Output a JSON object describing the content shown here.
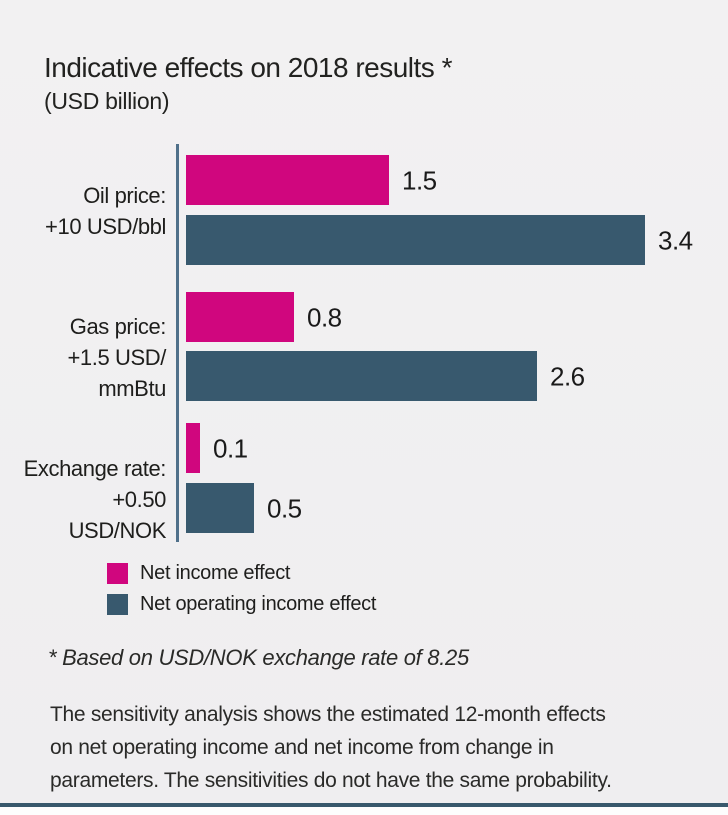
{
  "title": "Indicative effects on 2018 results *",
  "subtitle": "(USD billion)",
  "footnote": "* Based on USD/NOK exchange rate of 8.25",
  "description_lines": [
    "The sensitivity analysis shows the estimated 12-month effects",
    "on net operating income and net income from change in",
    "parameters. The sensitivities do not have the same probability."
  ],
  "colors": {
    "net_income_effect": "#d0067e",
    "net_operating_income_effect": "#38596e",
    "axis_line": "#50708a",
    "background": "#f0eff0",
    "bottom_rule": "#38586c",
    "text": "#1e1e1c"
  },
  "chart_data": {
    "type": "bar",
    "orientation": "horizontal",
    "title": "Indicative effects on 2018 results *",
    "unit_label": "(USD billion)",
    "xlim": [
      0,
      3.55
    ],
    "grid": false,
    "legend_position": "bottom-left",
    "categories": [
      {
        "label_lines": [
          "Oil price:",
          "+10 USD/bbl"
        ]
      },
      {
        "label_lines": [
          "Gas price:",
          "+1.5 USD/",
          "mmBtu"
        ]
      },
      {
        "label_lines": [
          "Exchange rate:",
          "+0.50",
          "USD/NOK"
        ]
      }
    ],
    "series": [
      {
        "name": "Net income effect",
        "color": "#d0067e",
        "values": [
          1.5,
          0.8,
          0.1
        ]
      },
      {
        "name": "Net operating income effect",
        "color": "#38596e",
        "values": [
          3.4,
          2.6,
          0.5
        ]
      }
    ],
    "value_labels": [
      [
        "1.5",
        "0.8",
        "0.1"
      ],
      [
        "3.4",
        "2.6",
        "0.5"
      ]
    ]
  }
}
